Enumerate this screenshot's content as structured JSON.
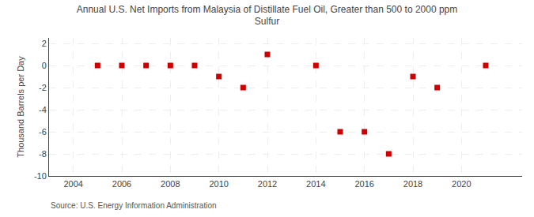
{
  "chart_data": {
    "type": "scatter",
    "title": "Annual U.S. Net Imports from Malaysia of Distillate Fuel Oil, Greater than 500 to 2000 ppm\nSulfur",
    "ylabel": "Thousand Barrels per Day",
    "source": "Source: U.S. Energy Information Administration",
    "x": [
      2005,
      2006,
      2007,
      2008,
      2009,
      2010,
      2011,
      2012,
      2014,
      2015,
      2016,
      2017,
      2018,
      2019,
      2021
    ],
    "values": [
      0,
      0,
      0,
      0,
      0,
      -1,
      -2,
      1,
      0,
      -6,
      -6,
      -8,
      -1,
      -2,
      0
    ],
    "color": "#cc0000",
    "marker": "square",
    "xlim": [
      2003.0,
      2022.5
    ],
    "ylim": [
      -10,
      2.5
    ],
    "xticks": [
      2004,
      2006,
      2008,
      2010,
      2012,
      2014,
      2016,
      2018,
      2020
    ],
    "yticks": [
      -10,
      -8,
      -6,
      -4,
      -2,
      0,
      2
    ],
    "grid": true
  }
}
